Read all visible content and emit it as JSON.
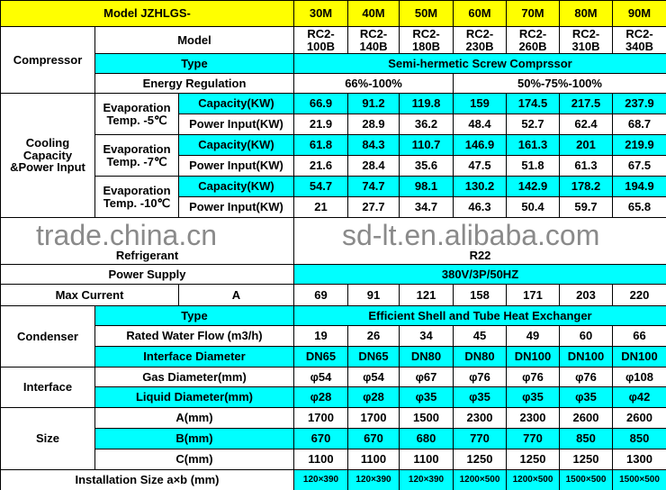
{
  "models": [
    "30M",
    "40M",
    "50M",
    "60M",
    "70M",
    "80M",
    "90M"
  ],
  "header": "Model JZHLGS-",
  "compressor": {
    "label": "Compressor",
    "model_label": "Model",
    "models": [
      "RC2-\n100B",
      "RC2-\n140B",
      "RC2-\n180B",
      "RC2-\n230B",
      "RC2-\n260B",
      "RC2-\n310B",
      "RC2-\n340B"
    ],
    "type_label": "Type",
    "type_value": "Semi-hermetic Screw Comprssor",
    "energy_label": "Energy Regulation",
    "energy_a": "66%-100%",
    "energy_b": "50%-75%-100%"
  },
  "cooling": {
    "label": "Cooling Capacity &Power Input",
    "groups": [
      {
        "temp": "Evaporation Temp. -5℃",
        "cap_label": "Capacity(KW)",
        "cap": [
          "66.9",
          "91.2",
          "119.8",
          "159",
          "174.5",
          "217.5",
          "237.9"
        ],
        "pow_label": "Power Input(KW)",
        "pow": [
          "21.9",
          "28.9",
          "36.2",
          "48.4",
          "52.7",
          "62.4",
          "68.7"
        ]
      },
      {
        "temp": "Evaporation Temp. -7℃",
        "cap_label": "Capacity(KW)",
        "cap": [
          "61.8",
          "84.3",
          "110.7",
          "146.9",
          "161.3",
          "201",
          "219.9"
        ],
        "pow_label": "Power Input(KW)",
        "pow": [
          "21.6",
          "28.4",
          "35.6",
          "47.5",
          "51.8",
          "61.3",
          "67.5"
        ]
      },
      {
        "temp": "Evaporation Temp. -10℃",
        "cap_label": "Capacity(KW)",
        "cap": [
          "54.7",
          "74.7",
          "98.1",
          "130.2",
          "142.9",
          "178.2",
          "194.9"
        ],
        "pow_label": "Power Input(KW)",
        "pow": [
          "21",
          "27.7",
          "34.7",
          "46.3",
          "50.4",
          "59.7",
          "65.8"
        ]
      }
    ]
  },
  "refrigerant": {
    "label": "Refrigerant",
    "value": "R22"
  },
  "power": {
    "label": "Power Supply",
    "value": "380V/3P/50HZ"
  },
  "current": {
    "label": "Max Current",
    "unit": "A",
    "values": [
      "69",
      "91",
      "121",
      "158",
      "171",
      "203",
      "220"
    ]
  },
  "condenser": {
    "label": "Condenser",
    "type_label": "Type",
    "type_value": "Efficient Shell and Tube Heat Exchanger",
    "flow_label": "Rated Water Flow (m3/h)",
    "flow": [
      "19",
      "26",
      "34",
      "45",
      "49",
      "60",
      "66"
    ],
    "dia_label": "Interface Diameter",
    "dia": [
      "DN65",
      "DN65",
      "DN80",
      "DN80",
      "DN100",
      "DN100",
      "DN100"
    ]
  },
  "interface": {
    "label": "Interface",
    "gas_label": "Gas Diameter(mm)",
    "gas": [
      "φ54",
      "φ54",
      "φ67",
      "φ76",
      "φ76",
      "φ76",
      "φ108"
    ],
    "liq_label": "Liquid Diameter(mm)",
    "liq": [
      "φ28",
      "φ28",
      "φ35",
      "φ35",
      "φ35",
      "φ35",
      "φ42"
    ]
  },
  "size": {
    "label": "Size",
    "a_label": "A(mm)",
    "a": [
      "1700",
      "1700",
      "1500",
      "2300",
      "2300",
      "2600",
      "2600"
    ],
    "b_label": "B(mm)",
    "b": [
      "670",
      "670",
      "680",
      "770",
      "770",
      "850",
      "850"
    ],
    "c_label": "C(mm)",
    "c": [
      "1100",
      "1100",
      "1100",
      "1250",
      "1250",
      "1250",
      "1300"
    ]
  },
  "install": {
    "label": "Installation Size a×b (mm)",
    "values": [
      "120×390",
      "120×390",
      "120×390",
      "1200×500",
      "1200×500",
      "1500×500",
      "1500×500"
    ]
  },
  "watermarks": [
    "trade.china.cn",
    "sd-lt.en.alibaba.com"
  ],
  "colors": {
    "header": "#ffff00",
    "highlight": "#00ffff"
  }
}
